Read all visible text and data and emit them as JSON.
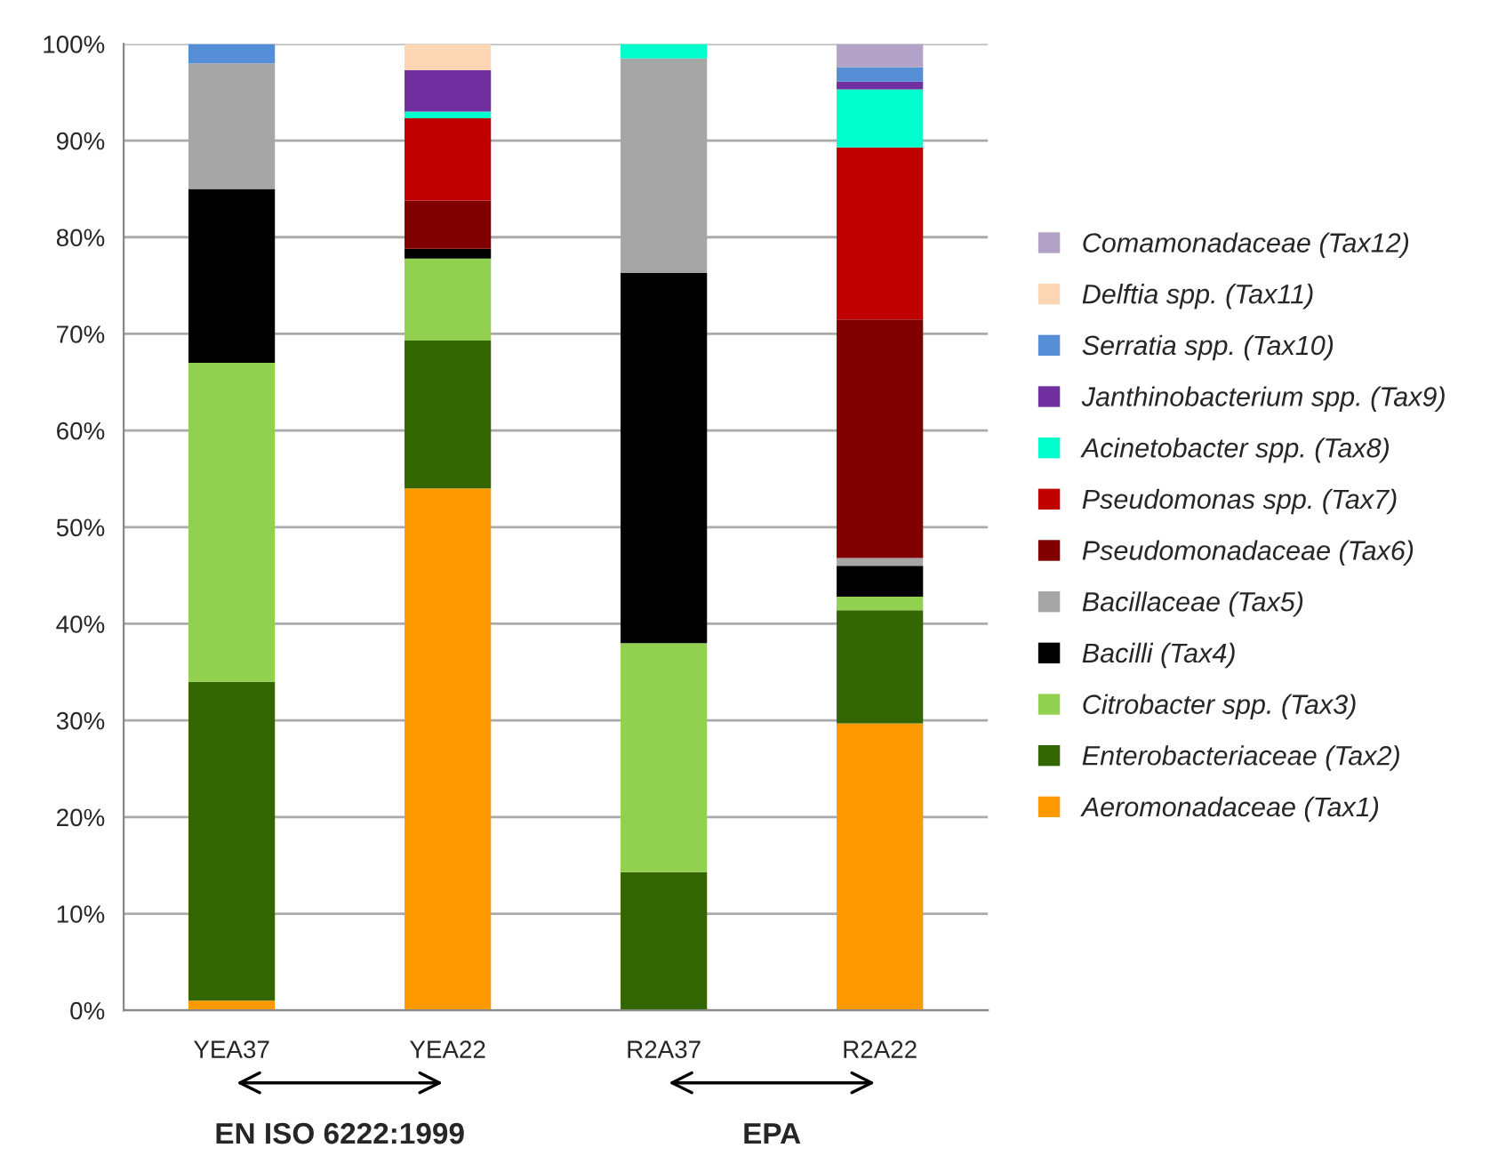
{
  "chart_data": {
    "type": "bar",
    "stacked": true,
    "categories": [
      "YEA37",
      "YEA22",
      "R2A37",
      "R2A22"
    ],
    "series": [
      {
        "name": "Aeromonadaceae (Tax1)",
        "color": "#ff9900",
        "values": [
          1,
          54,
          0,
          29.7
        ]
      },
      {
        "name": "Enterobacteriaceae (Tax2)",
        "color": "#336600",
        "values": [
          33,
          15.3,
          14.3,
          11.7
        ]
      },
      {
        "name": "Citrobacter spp. (Tax3)",
        "color": "#92d050",
        "values": [
          33,
          8.5,
          23.7,
          1.4
        ]
      },
      {
        "name": "Bacilli (Tax4)",
        "color": "#000000",
        "values": [
          18,
          1.0,
          38.3,
          3.2
        ]
      },
      {
        "name": "Bacillaceae (Tax5)",
        "color": "#a6a6a6",
        "values": [
          13,
          0,
          22.2,
          0.8
        ]
      },
      {
        "name": "Pseudomonadaceae (Tax6)",
        "color": "#800000",
        "values": [
          0,
          5.0,
          0,
          24.7
        ]
      },
      {
        "name": "Pseudomonas spp. (Tax7)",
        "color": "#c00000",
        "values": [
          0,
          8.5,
          0,
          17.8
        ]
      },
      {
        "name": "Acinetobacter spp. (Tax8)",
        "color": "#00ffcc",
        "values": [
          0,
          0.7,
          1.5,
          6.0
        ]
      },
      {
        "name": "Janthinobacterium spp. (Tax9)",
        "color": "#7030a0",
        "values": [
          0,
          4.3,
          0,
          0.8
        ]
      },
      {
        "name": "Serratia spp. (Tax10)",
        "color": "#558ed5",
        "values": [
          2,
          0,
          0,
          1.5
        ]
      },
      {
        "name": "Delftia spp. (Tax11)",
        "color": "#fcd5b5",
        "values": [
          0,
          2.7,
          0,
          0
        ]
      },
      {
        "name": "Comamonadaceae (Tax12)",
        "color": "#b3a2c7",
        "values": [
          0,
          0,
          0,
          2.4
        ]
      }
    ],
    "ylim": [
      0,
      100
    ],
    "yticks": [
      {
        "value": 0,
        "label": "0%"
      },
      {
        "value": 10,
        "label": "10%"
      },
      {
        "value": 20,
        "label": "20%"
      },
      {
        "value": 30,
        "label": "30%"
      },
      {
        "value": 40,
        "label": "40%"
      },
      {
        "value": 50,
        "label": "50%"
      },
      {
        "value": 60,
        "label": "60%"
      },
      {
        "value": 70,
        "label": "70%"
      },
      {
        "value": 80,
        "label": "80%"
      },
      {
        "value": 90,
        "label": "90%"
      },
      {
        "value": 100,
        "label": "100%"
      }
    ],
    "grid": "y",
    "legend": "right",
    "annotations": [
      "EN ISO 6222:1999",
      "EPA"
    ]
  }
}
